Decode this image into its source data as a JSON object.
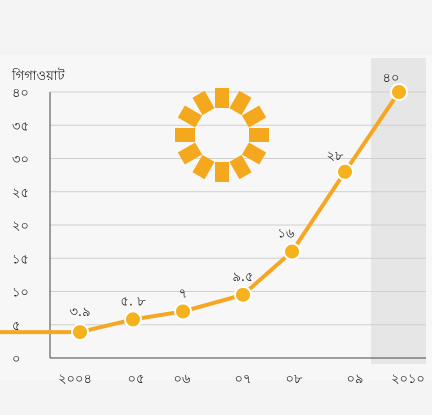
{
  "chart_data": {
    "type": "line",
    "ylabel": "গিগাওয়াট",
    "ylim": [
      0,
      40
    ],
    "y_ticks": [
      "০",
      "৫",
      "১০",
      "১৫",
      "২০",
      "২৫",
      "৩০",
      "৩৫",
      "৪০"
    ],
    "x": [
      "২০০৪",
      "০৫",
      "০৬",
      "০৭",
      "০৮",
      "০৯",
      "২০১০"
    ],
    "values": [
      3.9,
      5.8,
      7,
      9.5,
      16,
      28,
      40
    ],
    "data_labels": [
      "৩.৯",
      "৫. ৮",
      "৭",
      "৯.৫",
      "১৬",
      "২৮",
      "৪০"
    ],
    "highlight_category": "২০১০",
    "grid": "horizontal",
    "colors": {
      "line": "#f5a623",
      "marker": "#f5b21c",
      "highlight_band": "#e6e6e6",
      "sun": "#f4a81d",
      "grid": "#cfcfcf",
      "axis": "#444444"
    },
    "icon": "sun-icon"
  }
}
